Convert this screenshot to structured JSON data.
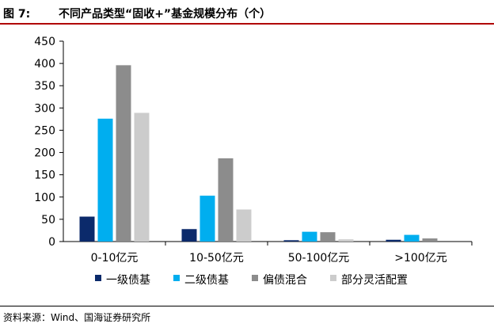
{
  "figure": {
    "label": "图 7:",
    "title": "不同产品类型“固收+”基金规模分布（个）"
  },
  "source": "资料来源：Wind、国海证券研究所",
  "chart_data": {
    "type": "bar",
    "title": "不同产品类型“固收+”基金规模分布（个）",
    "categories": [
      "0-10亿元",
      "10-50亿元",
      "50-100亿元",
      ">100亿元"
    ],
    "series": [
      {
        "name": "一级债基",
        "color": "#0b2a6b",
        "values": [
          56,
          28,
          3,
          4
        ]
      },
      {
        "name": "二级债基",
        "color": "#00aeef",
        "values": [
          276,
          103,
          22,
          15
        ]
      },
      {
        "name": "偏债混合",
        "color": "#8c8c8c",
        "values": [
          396,
          187,
          21,
          7
        ]
      },
      {
        "name": "部分灵活配置",
        "color": "#cccccc",
        "values": [
          289,
          72,
          5,
          0
        ]
      }
    ],
    "yticks": [
      0,
      50,
      100,
      150,
      200,
      250,
      300,
      350,
      400,
      450
    ],
    "ylim": [
      0,
      450
    ],
    "xlabel": "",
    "ylabel": "",
    "grid": false,
    "legend_position": "bottom"
  }
}
